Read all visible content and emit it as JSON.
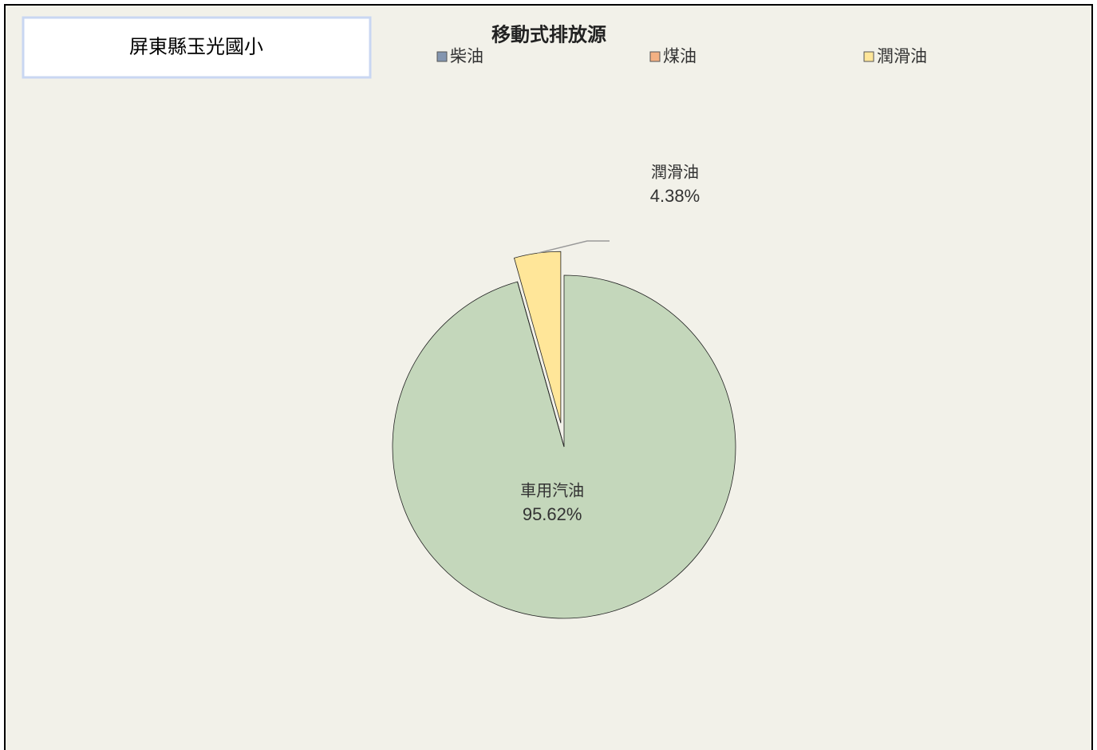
{
  "header": {
    "school": "屏東縣玉光國小"
  },
  "chart_data": {
    "type": "pie",
    "title": "移動式排放源",
    "categories": [
      "車用汽油",
      "柴油",
      "煤油",
      "潤滑油"
    ],
    "values": [
      95.62,
      0,
      0,
      4.38
    ],
    "value_labels": [
      "95.62%",
      null,
      null,
      "4.38%"
    ],
    "colors": [
      "#c4d7bb",
      "#8496b0",
      "#f4b183",
      "#ffe699"
    ],
    "legend": [
      "柴油",
      "煤油",
      "潤滑油"
    ],
    "legend_colors": [
      "#8496b0",
      "#f4b183",
      "#ffe699"
    ],
    "exploded": [
      3
    ]
  }
}
